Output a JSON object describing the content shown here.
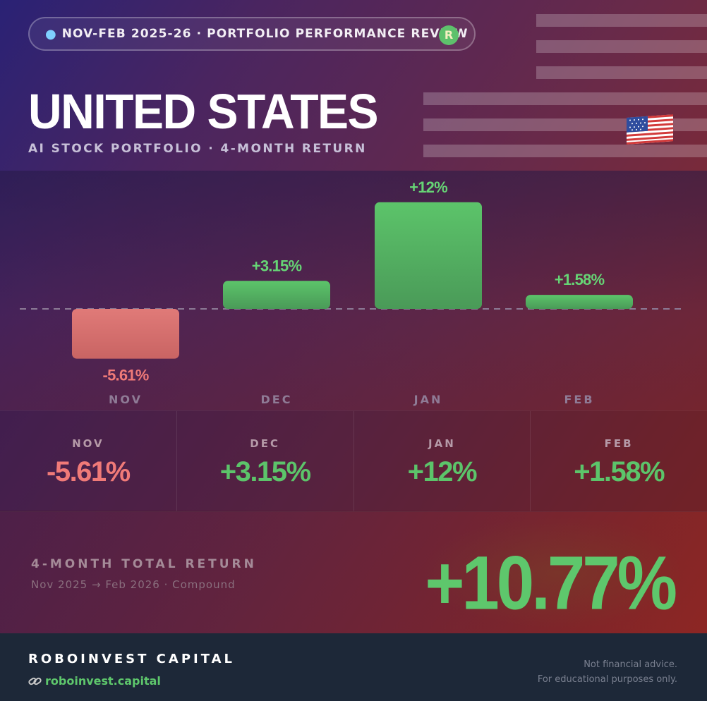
{
  "header": {
    "pill_text": "NOV-FEB 2025-26 · PORTFOLIO PERFORMANCE REVIEW",
    "pill_icon": "globe-icon",
    "logo_letter": "R",
    "title": "UNITED STATES",
    "subtitle": "AI STOCK PORTFOLIO · 4-MONTH RETURN",
    "flag_icon": "us-flag-icon"
  },
  "chart_data": {
    "type": "bar",
    "categories": [
      "NOV",
      "DEC",
      "JAN",
      "FEB"
    ],
    "values": [
      -5.61,
      3.15,
      12,
      1.58
    ],
    "data_labels": [
      "-5.61%",
      "+3.15%",
      "+12%",
      "+1.58%"
    ],
    "title": "",
    "xlabel": "",
    "ylabel": "",
    "ylim": [
      -12,
      12
    ],
    "grid": false,
    "legend": "none",
    "colors": {
      "positive": "#5cc46a",
      "negative": "#e27272",
      "zero_line": "#8c7b96"
    }
  },
  "months": [
    {
      "label": "NOV",
      "value": "-5.61%",
      "sign": "neg"
    },
    {
      "label": "DEC",
      "value": "+3.15%",
      "sign": "pos"
    },
    {
      "label": "JAN",
      "value": "+12%",
      "sign": "pos"
    },
    {
      "label": "FEB",
      "value": "+1.58%",
      "sign": "pos"
    }
  ],
  "total": {
    "label": "4-MONTH TOTAL RETURN",
    "sublabel": "Nov 2025 → Feb 2026 · Compound",
    "value": "+10.77%"
  },
  "footer": {
    "brand": "ROBOINVEST CAPITAL",
    "site": "roboinvest.capital",
    "disclaimer_line1": "Not financial advice.",
    "disclaimer_line2": "For educational purposes only."
  }
}
